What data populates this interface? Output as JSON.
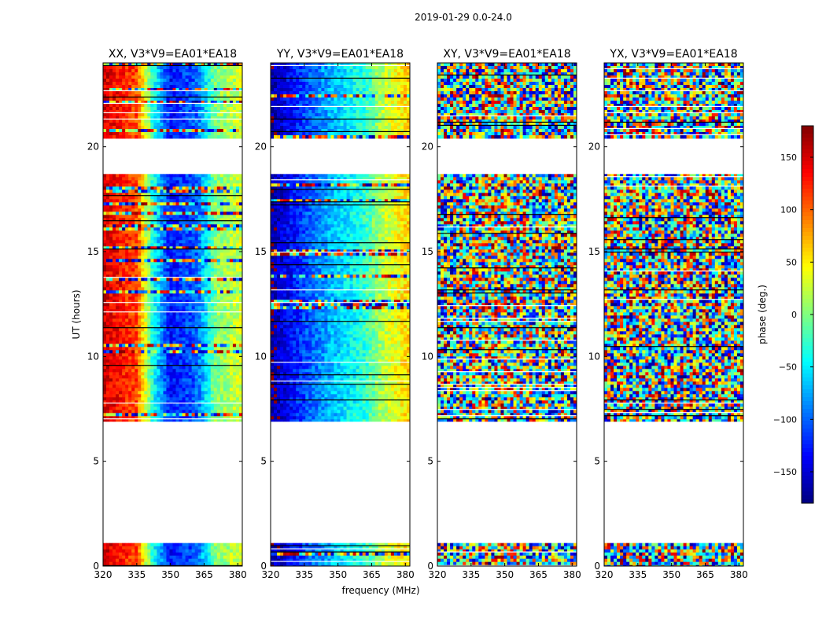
{
  "figure_title": "2019-01-29 0.0-24.0",
  "chart_data": {
    "type": "heatmap",
    "suptitle": "2019-01-29 0.0-24.0",
    "xlabel": "frequency (MHz)",
    "ylabel": "UT (hours)",
    "xlim": [
      320,
      382
    ],
    "ylim": [
      0,
      24
    ],
    "x_ticks": [
      320,
      335,
      350,
      365,
      380
    ],
    "y_ticks": [
      0,
      5,
      10,
      15,
      20
    ],
    "colormap": "jet",
    "colorbar": {
      "label": "phase (deg.)",
      "range": [
        -180,
        180
      ],
      "ticks": [
        150,
        100,
        50,
        0,
        -50,
        -100,
        -150
      ],
      "tick_labels": [
        "150",
        "100",
        "50",
        "0",
        "−50",
        "−100",
        "−150"
      ]
    },
    "data_blocks_ut": [
      [
        0,
        1.1
      ],
      [
        6.9,
        18.7
      ],
      [
        20.4,
        24
      ]
    ],
    "flagged_gap_ut": [
      [
        1.1,
        6.9
      ],
      [
        18.7,
        20.4
      ]
    ],
    "panels": [
      {
        "title": "XX, V3*V9=EA01*EA18",
        "phase_gradient": [
          [
            320,
            150
          ],
          [
            335,
            110
          ],
          [
            342,
            -30
          ],
          [
            350,
            -130
          ],
          [
            362,
            -100
          ],
          [
            370,
            0
          ],
          [
            382,
            30
          ]
        ],
        "noise": 25
      },
      {
        "title": "YY, V3*V9=EA01*EA18",
        "phase_gradient": [
          [
            320,
            -170
          ],
          [
            335,
            -110
          ],
          [
            350,
            -60
          ],
          [
            362,
            -30
          ],
          [
            370,
            20
          ],
          [
            382,
            60
          ]
        ],
        "noise": 25
      },
      {
        "title": "XY, V3*V9=EA01*EA18",
        "phase_gradient": [
          [
            320,
            -60
          ],
          [
            335,
            -10
          ],
          [
            345,
            40
          ],
          [
            355,
            20
          ],
          [
            365,
            -30
          ],
          [
            382,
            -50
          ]
        ],
        "noise": 160
      },
      {
        "title": "YX, V3*V9=EA01*EA18",
        "phase_gradient": [
          [
            320,
            -40
          ],
          [
            335,
            -20
          ],
          [
            350,
            -10
          ],
          [
            365,
            -30
          ],
          [
            382,
            -40
          ]
        ],
        "noise": 170
      }
    ]
  }
}
